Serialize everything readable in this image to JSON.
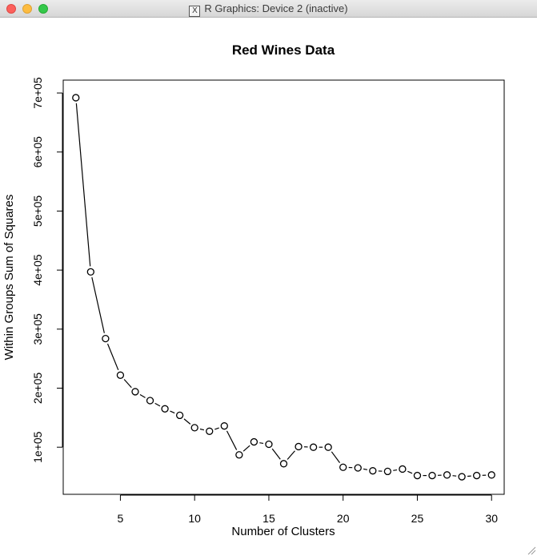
{
  "window": {
    "title": "R Graphics: Device 2 (inactive)",
    "app_icon": "x11-icon"
  },
  "chart_data": {
    "type": "line",
    "title": "Red Wines Data",
    "xlabel": "Number of Clusters",
    "ylabel": "Within Groups Sum of Squares",
    "markers": "open-circle",
    "x": [
      2,
      3,
      4,
      5,
      6,
      7,
      8,
      9,
      10,
      11,
      12,
      13,
      14,
      15,
      16,
      17,
      18,
      19,
      20,
      21,
      22,
      23,
      24,
      25,
      26,
      27,
      28,
      29,
      30
    ],
    "y": [
      692000,
      397000,
      284000,
      222000,
      194000,
      179000,
      165000,
      154000,
      133000,
      127000,
      136000,
      87000,
      109000,
      105000,
      72000,
      101000,
      100000,
      100000,
      66000,
      65000,
      60000,
      59000,
      63000,
      52000,
      52000,
      53000,
      50000,
      52000,
      53000
    ],
    "xlim": [
      1.15,
      30.85
    ],
    "ylim": [
      20200,
      721800
    ],
    "xticks": [
      5,
      10,
      15,
      20,
      25,
      30
    ],
    "xtick_labels": [
      "5",
      "10",
      "15",
      "20",
      "25",
      "30"
    ],
    "yticks": [
      100000,
      200000,
      300000,
      400000,
      500000,
      600000,
      700000
    ],
    "ytick_labels": [
      "1e+05",
      "2e+05",
      "3e+05",
      "4e+05",
      "5e+05",
      "6e+05",
      "7e+05"
    ],
    "grid": false,
    "colors": {
      "line": "#000000",
      "background": "#ffffff"
    }
  }
}
